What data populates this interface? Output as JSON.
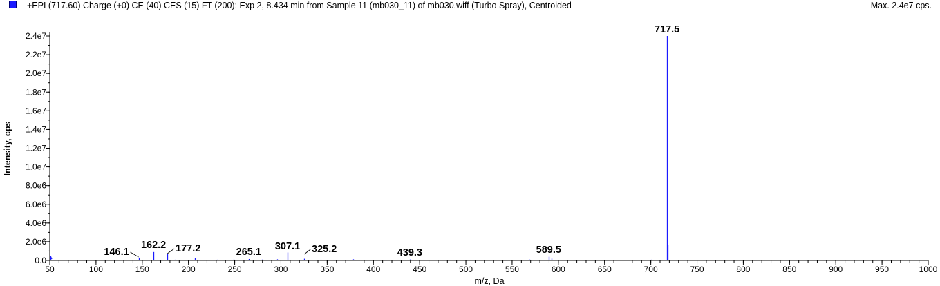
{
  "header": {
    "title": "+EPI (717.60) Charge (+0) CE (40) CES (15) FT (200): Exp 2, 8.434 min from Sample 11 (mb030_11) of mb030.wiff (Turbo Spray), Centroided",
    "max_label": "Max. 2.4e7 cps.",
    "series_color": "#1a1aff"
  },
  "chart_data": {
    "type": "bar",
    "title": "+EPI (717.60) Charge (+0) CE (40) CES (15) FT (200): Exp 2, 8.434 min from Sample 11 (mb030_11) of mb030.wiff (Turbo Spray), Centroided",
    "xlabel": "m/z, Da",
    "ylabel": "Intensity, cps",
    "xlim": [
      50,
      1000
    ],
    "ylim": [
      0,
      24000000
    ],
    "x_ticks": [
      50,
      100,
      150,
      200,
      250,
      300,
      350,
      400,
      450,
      500,
      550,
      600,
      650,
      700,
      750,
      800,
      850,
      900,
      950,
      1000
    ],
    "y_ticks": [
      0,
      2000000,
      4000000,
      6000000,
      8000000,
      10000000,
      12000000,
      14000000,
      16000000,
      18000000,
      20000000,
      22000000,
      24000000
    ],
    "y_tick_labels": [
      "0.0",
      "2.0e6",
      "4.0e6",
      "6.0e6",
      "8.0e6",
      "1.0e7",
      "1.2e7",
      "1.4e7",
      "1.6e7",
      "1.8e7",
      "2.0e7",
      "2.2e7",
      "2.4e7"
    ],
    "x_tick_labels": [
      "50",
      "100",
      "150",
      "200",
      "250",
      "300",
      "350",
      "400",
      "450",
      "500",
      "550",
      "600",
      "650",
      "700",
      "750",
      "800",
      "850",
      "900",
      "950",
      "1000"
    ],
    "color": "#1a1aff",
    "grid": false,
    "peaks": [
      {
        "mz": 146.1,
        "intensity": 300000,
        "label": "146.1"
      },
      {
        "mz": 162.2,
        "intensity": 900000,
        "label": "162.2"
      },
      {
        "mz": 177.2,
        "intensity": 700000,
        "label": "177.2"
      },
      {
        "mz": 265.1,
        "intensity": 150000,
        "label": "265.1"
      },
      {
        "mz": 307.1,
        "intensity": 850000,
        "label": "307.1"
      },
      {
        "mz": 325.2,
        "intensity": 180000,
        "label": "325.2"
      },
      {
        "mz": 439.3,
        "intensity": 100000,
        "label": "439.3"
      },
      {
        "mz": 589.5,
        "intensity": 400000,
        "label": "589.5"
      },
      {
        "mz": 717.5,
        "intensity": 24000000,
        "label": "717.5"
      }
    ],
    "minor_peaks": [
      {
        "mz": 51.0,
        "intensity": 500000
      },
      {
        "mz": 120.1,
        "intensity": 60000
      },
      {
        "mz": 185.0,
        "intensity": 80000
      },
      {
        "mz": 207.0,
        "intensity": 250000
      },
      {
        "mz": 231.1,
        "intensity": 80000
      },
      {
        "mz": 249.1,
        "intensity": 100000
      },
      {
        "mz": 279.1,
        "intensity": 90000
      },
      {
        "mz": 296.0,
        "intensity": 120000
      },
      {
        "mz": 343.2,
        "intensity": 80000
      },
      {
        "mz": 378.2,
        "intensity": 120000
      },
      {
        "mz": 412.0,
        "intensity": 60000
      },
      {
        "mz": 569.0,
        "intensity": 90000
      },
      {
        "mz": 593.0,
        "intensity": 200000
      },
      {
        "mz": 700.0,
        "intensity": 80000
      },
      {
        "mz": 718.5,
        "intensity": 1700000
      }
    ]
  }
}
